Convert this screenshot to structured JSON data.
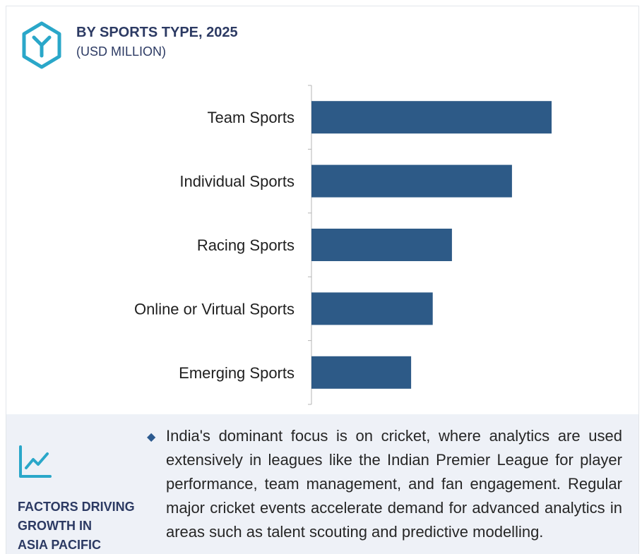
{
  "header": {
    "title": "BY SPORTS TYPE, 2025",
    "subtitle": "(USD MILLION)",
    "logo_icon": "hexagon-y-logo-icon"
  },
  "colors": {
    "bar": "#2d5a87",
    "accent": "#2aa7c9",
    "heading": "#2c3a63",
    "panel_bg": "#eef1f7"
  },
  "chart_data": {
    "type": "bar",
    "orientation": "horizontal",
    "categories": [
      "Team Sports",
      "Individual Sports",
      "Racing Sports",
      "Online or Virtual Sports",
      "Emerging Sports"
    ],
    "values": [
      100,
      83.5,
      58.5,
      50.5,
      41.5
    ],
    "title": "BY SPORTS TYPE, 2025",
    "subtitle": "(USD MILLION)",
    "xlim": [
      0,
      100
    ],
    "grid": false,
    "value_axis_labels_shown": false
  },
  "factors": {
    "icon": "trend-chart-icon",
    "heading_lines": [
      "FACTORS DRIVING",
      "GROWTH IN",
      "ASIA PACIFIC"
    ],
    "bullet_icon": "diamond-bullet-icon",
    "text": "India's dominant focus is on cricket, where analytics are used extensively in leagues like the Indian Premier League for player performance, team management, and fan engagement. Regular major cricket events accelerate demand for advanced analytics in areas such as talent scouting and predictive modelling."
  }
}
